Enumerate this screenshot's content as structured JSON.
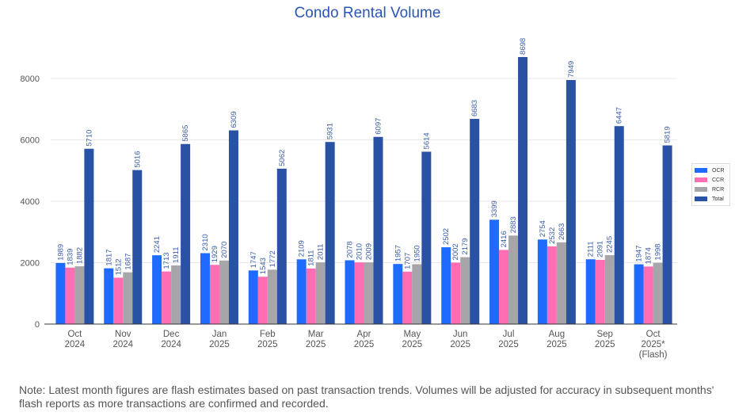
{
  "chart_data": {
    "type": "bar",
    "title": "Condo Rental Volume",
    "xlabel": "",
    "ylabel": "",
    "ylim": [
      0,
      9000
    ],
    "yticks": [
      0,
      2000,
      4000,
      6000,
      8000
    ],
    "grid": true,
    "legend_position": "right",
    "categories": [
      [
        "Oct",
        "2024"
      ],
      [
        "Nov",
        "2024"
      ],
      [
        "Dec",
        "2024"
      ],
      [
        "Jan",
        "2025"
      ],
      [
        "Feb",
        "2025"
      ],
      [
        "Mar",
        "2025"
      ],
      [
        "Apr",
        "2025"
      ],
      [
        "May",
        "2025"
      ],
      [
        "Jun",
        "2025"
      ],
      [
        "Jul",
        "2025"
      ],
      [
        "Aug",
        "2025"
      ],
      [
        "Sep",
        "2025"
      ],
      [
        "Oct",
        "2025*",
        "(Flash)"
      ]
    ],
    "series": [
      {
        "name": "OCR",
        "color": "#1f6bff",
        "values": [
          1989,
          1817,
          2241,
          2310,
          1747,
          2109,
          2078,
          1957,
          2502,
          3399,
          2754,
          2111,
          1947
        ]
      },
      {
        "name": "CCR",
        "color": "#ff6eb4",
        "values": [
          1839,
          1512,
          1713,
          1929,
          1543,
          1811,
          2010,
          1707,
          2002,
          2416,
          2532,
          2091,
          1874
        ]
      },
      {
        "name": "RCR",
        "color": "#a6a6aa",
        "values": [
          1882,
          1687,
          1911,
          2070,
          1772,
          2011,
          2009,
          1950,
          2179,
          2883,
          2663,
          2245,
          1998
        ]
      },
      {
        "name": "Total",
        "color": "#2a52a4",
        "values": [
          5710,
          5016,
          5865,
          6309,
          5062,
          5931,
          6097,
          5614,
          6683,
          8698,
          7949,
          6447,
          5819
        ]
      }
    ]
  },
  "note": "Note: Latest month figures are flash estimates based on past transaction trends. Volumes will be adjusted for accuracy in subsequent months' flash reports as more transactions are confirmed and recorded."
}
